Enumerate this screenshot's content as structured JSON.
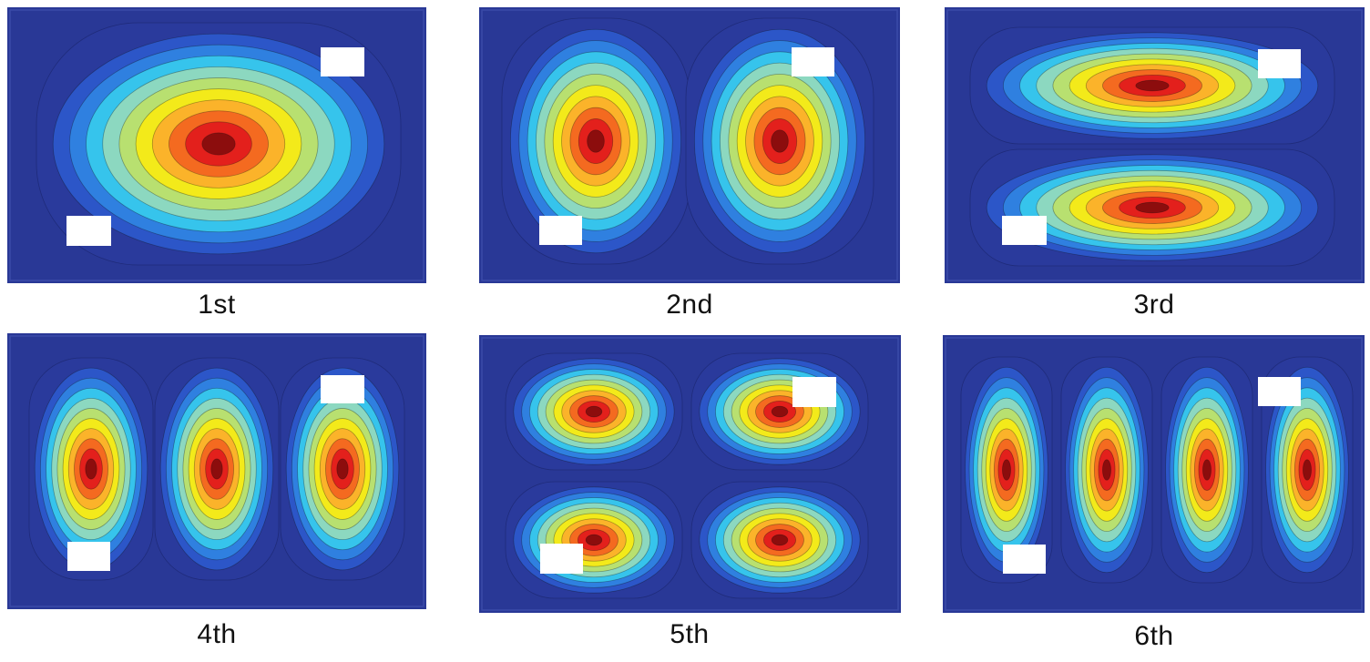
{
  "palette": [
    "#2a3a9c",
    "#2c56c8",
    "#2f80e0",
    "#36c4ec",
    "#8cd8c0",
    "#b8e070",
    "#f3ea1a",
    "#fbb32a",
    "#f46a20",
    "#e3201c",
    "#8c0d0d"
  ],
  "background_color": "#293896",
  "sensor_color": "#ffffff",
  "panels": [
    {
      "caption": "1st",
      "mode": [
        1,
        1
      ]
    },
    {
      "caption": "2nd",
      "mode": [
        2,
        1
      ]
    },
    {
      "caption": "3rd",
      "mode": [
        1,
        2
      ]
    },
    {
      "caption": "4th",
      "mode": [
        3,
        1
      ]
    },
    {
      "caption": "5th",
      "mode": [
        2,
        2
      ]
    },
    {
      "caption": "6th",
      "mode": [
        4,
        1
      ]
    }
  ]
}
